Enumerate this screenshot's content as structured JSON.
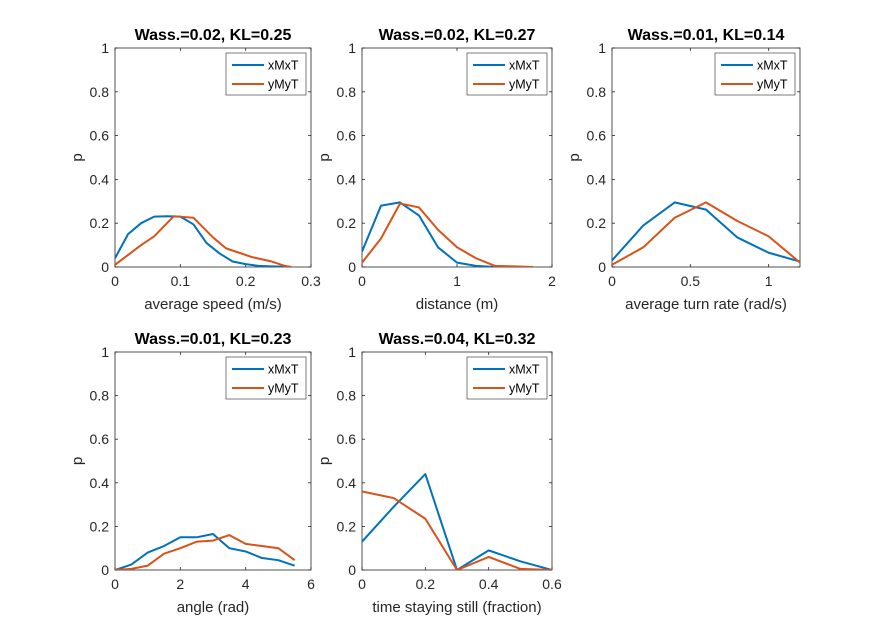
{
  "chart_data": [
    {
      "type": "line",
      "title": "Wass.=0.02, KL=0.25",
      "xlabel": "average speed (m/s)",
      "ylabel": "p",
      "xlim": [
        0,
        0.3
      ],
      "ylim": [
        0,
        1
      ],
      "xticks": [
        0,
        0.1,
        0.2,
        0.3
      ],
      "xtick_labels": [
        "0",
        "0.1",
        "0.2",
        "0.3"
      ],
      "yticks": [
        0,
        0.2,
        0.4,
        0.6,
        0.8,
        1
      ],
      "ytick_labels": [
        "0",
        "0.2",
        "0.4",
        "0.6",
        "0.8",
        "1"
      ],
      "legend": "top-right",
      "series": [
        {
          "name": "xMxT",
          "color": "#0072BD",
          "x": [
            0,
            0.02,
            0.04,
            0.06,
            0.08,
            0.1,
            0.12,
            0.14,
            0.16,
            0.18,
            0.2,
            0.22,
            0.24,
            0.26,
            0.27
          ],
          "y": [
            0.04,
            0.15,
            0.2,
            0.23,
            0.232,
            0.23,
            0.195,
            0.11,
            0.062,
            0.025,
            0.013,
            0.005,
            0.003,
            0.001,
            0
          ]
        },
        {
          "name": "yMyT",
          "color": "#D95319",
          "x": [
            0,
            0.04,
            0.06,
            0.09,
            0.12,
            0.15,
            0.17,
            0.19,
            0.21,
            0.24,
            0.26,
            0.27
          ],
          "y": [
            0.01,
            0.1,
            0.14,
            0.232,
            0.225,
            0.135,
            0.085,
            0.065,
            0.045,
            0.025,
            0.005,
            0
          ]
        }
      ]
    },
    {
      "type": "line",
      "title": "Wass.=0.02, KL=0.27",
      "xlabel": "distance (m)",
      "ylabel": "p",
      "xlim": [
        0,
        2
      ],
      "ylim": [
        0,
        1
      ],
      "xticks": [
        0,
        1,
        2
      ],
      "xtick_labels": [
        "0",
        "1",
        "2"
      ],
      "yticks": [
        0,
        0.2,
        0.4,
        0.6,
        0.8,
        1
      ],
      "ytick_labels": [
        "0",
        "0.2",
        "0.4",
        "0.6",
        "0.8",
        "1"
      ],
      "legend": "top-right",
      "series": [
        {
          "name": "xMxT",
          "color": "#0072BD",
          "x": [
            0,
            0.2,
            0.4,
            0.6,
            0.8,
            1.0,
            1.2,
            1.4,
            1.6,
            1.8
          ],
          "y": [
            0.07,
            0.28,
            0.295,
            0.235,
            0.09,
            0.02,
            0.005,
            0,
            0,
            0
          ]
        },
        {
          "name": "yMyT",
          "color": "#D95319",
          "x": [
            0,
            0.2,
            0.4,
            0.6,
            0.8,
            1.0,
            1.2,
            1.4,
            1.6,
            1.8
          ],
          "y": [
            0.02,
            0.13,
            0.29,
            0.272,
            0.17,
            0.09,
            0.04,
            0.005,
            0.003,
            0
          ]
        }
      ]
    },
    {
      "type": "line",
      "title": "Wass.=0.01, KL=0.14",
      "xlabel": "average turn rate (rad/s)",
      "ylabel": "p",
      "xlim": [
        0,
        1.2
      ],
      "ylim": [
        0,
        1
      ],
      "xticks": [
        0,
        0.5,
        1
      ],
      "xtick_labels": [
        "0",
        "0.5",
        "1"
      ],
      "yticks": [
        0,
        0.2,
        0.4,
        0.6,
        0.8,
        1
      ],
      "ytick_labels": [
        "0",
        "0.2",
        "0.4",
        "0.6",
        "0.8",
        "1"
      ],
      "legend": "top-right",
      "series": [
        {
          "name": "xMxT",
          "color": "#0072BD",
          "x": [
            0,
            0.2,
            0.4,
            0.6,
            0.8,
            1.0,
            1.2
          ],
          "y": [
            0.03,
            0.19,
            0.295,
            0.262,
            0.135,
            0.065,
            0.025
          ]
        },
        {
          "name": "yMyT",
          "color": "#D95319",
          "x": [
            0,
            0.2,
            0.4,
            0.6,
            0.8,
            1.0,
            1.2
          ],
          "y": [
            0.01,
            0.09,
            0.225,
            0.295,
            0.21,
            0.14,
            0.02
          ]
        }
      ]
    },
    {
      "type": "line",
      "title": "Wass.=0.01, KL=0.23",
      "xlabel": "angle (rad)",
      "ylabel": "p",
      "xlim": [
        0,
        6
      ],
      "ylim": [
        0,
        1
      ],
      "xticks": [
        0,
        2,
        4,
        6
      ],
      "xtick_labels": [
        "0",
        "2",
        "4",
        "6"
      ],
      "yticks": [
        0,
        0.2,
        0.4,
        0.6,
        0.8,
        1
      ],
      "ytick_labels": [
        "0",
        "0.2",
        "0.4",
        "0.6",
        "0.8",
        "1"
      ],
      "legend": "top-right",
      "series": [
        {
          "name": "xMxT",
          "color": "#0072BD",
          "x": [
            0,
            0.5,
            1.0,
            1.5,
            2.0,
            2.5,
            3.0,
            3.5,
            4.0,
            4.5,
            5.0,
            5.5
          ],
          "y": [
            0,
            0.025,
            0.08,
            0.11,
            0.15,
            0.15,
            0.165,
            0.1,
            0.085,
            0.055,
            0.045,
            0.02
          ]
        },
        {
          "name": "yMyT",
          "color": "#D95319",
          "x": [
            0,
            0.5,
            1.0,
            1.5,
            2.0,
            2.5,
            3.0,
            3.5,
            4.0,
            4.5,
            5.0,
            5.5
          ],
          "y": [
            0,
            0.005,
            0.02,
            0.075,
            0.1,
            0.13,
            0.135,
            0.16,
            0.12,
            0.11,
            0.1,
            0.045
          ]
        }
      ]
    },
    {
      "type": "line",
      "title": "Wass.=0.04, KL=0.32",
      "xlabel": "time staying still (fraction)",
      "ylabel": "p",
      "xlim": [
        0,
        0.6
      ],
      "ylim": [
        0,
        1
      ],
      "xticks": [
        0,
        0.2,
        0.4,
        0.6
      ],
      "xtick_labels": [
        "0",
        "0.2",
        "0.4",
        "0.6"
      ],
      "yticks": [
        0,
        0.2,
        0.4,
        0.6,
        0.8,
        1
      ],
      "ytick_labels": [
        "0",
        "0.2",
        "0.4",
        "0.6",
        "0.8",
        "1"
      ],
      "legend": "top-right",
      "series": [
        {
          "name": "xMxT",
          "color": "#0072BD",
          "x": [
            0,
            0.1,
            0.2,
            0.3,
            0.4,
            0.5,
            0.6
          ],
          "y": [
            0.13,
            0.29,
            0.44,
            0,
            0.09,
            0.04,
            0
          ]
        },
        {
          "name": "yMyT",
          "color": "#D95319",
          "x": [
            0,
            0.1,
            0.2,
            0.3,
            0.4,
            0.5,
            0.6
          ],
          "y": [
            0.36,
            0.33,
            0.235,
            0,
            0.06,
            0.005,
            0
          ]
        }
      ]
    }
  ]
}
